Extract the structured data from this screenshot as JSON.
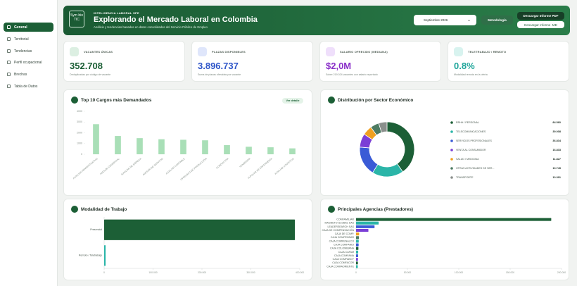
{
  "sidebar": {
    "items": [
      "General",
      "Territorial",
      "Tendencias",
      "Perfil ocupacional",
      "Brechas",
      "Tabla de Datos"
    ]
  },
  "header": {
    "logo": "Sym bio TIC",
    "eyebrow": "INTELIGENCIA LABORAL SPE",
    "title": "Explorando el Mercado Laboral en Colombia",
    "subtitle": "Análisis y tendencias basados en datos consolidados del Servicio Público de Empleo",
    "period": "Septiembre 2026",
    "methodology": "Metodología",
    "download_pdf": "Descargar Informe PDF",
    "download_md": "Descargar Informe .MD"
  },
  "kpis": [
    {
      "label": "VACANTES ÚNICAS",
      "value": "352.708",
      "note": "Deduplicadas por código de vacante"
    },
    {
      "label": "PLAZAS DISPONIBLES",
      "value": "3.896.737",
      "note": "Suma de plazas ofrecidas por vacante"
    },
    {
      "label": "SALARIO OFRECIDO (MEDIANA)",
      "value": "$2,0M",
      "note": "Sobre 219.024 vacantes con salario reportado"
    },
    {
      "label": "TELETRABAJO / REMOTO",
      "value": "0.8%",
      "note": "Modalidad remota en la oferta"
    }
  ],
  "detail_button": "Ver detalle",
  "chart_data": [
    {
      "type": "bar",
      "orientation": "vertical",
      "title": "Top 10 Cargos más Demandados",
      "categories": [
        "AUXILIAR ADMINISTRATIVO",
        "ASESOR COMERCIAL",
        "AUXILIAR DE BODEGA",
        "ASESOR DE SERVICIO",
        "AUXILIAR CONTABLE",
        "OPERARIO DE PRODUCCIÓN",
        "CONDUCTOR",
        "VENDEDOR",
        "AUXILIAR DE ENFERMERÍA",
        "AUXILIAR LOGÍSTICO"
      ],
      "values": [
        2800,
        1700,
        1500,
        1400,
        1350,
        1300,
        850,
        700,
        650,
        550
      ],
      "color": "#a9dfb7",
      "ylim": [
        0,
        4000
      ],
      "yticks": [
        0,
        1000,
        2000,
        3000,
        4000
      ],
      "grid": false
    },
    {
      "type": "donut",
      "title": "Distribución por Sector Económico",
      "categories": [
        "RRHH / PERSONAL",
        "TELECOMUNICACIONES",
        "SERVICIOS PROFESIONALES",
        "VENTA AL CONSUMIDOR",
        "SALUD / MEDICINA",
        "OTRAS ACTIVIDADES DE SER...",
        "TRANSPORTE"
      ],
      "values": [
        84560,
        39008,
        36834,
        16833,
        11827,
        10745,
        10391
      ],
      "value_labels": [
        "84.560",
        "39.008",
        "36.834",
        "16.833",
        "11.827",
        "10.745",
        "10.391"
      ],
      "colors": [
        "#1c5f36",
        "#2bb5a8",
        "#3a5bd6",
        "#7b3fd6",
        "#f0a020",
        "#4d7b62",
        "#8a8f8c"
      ]
    },
    {
      "type": "bar",
      "orientation": "horizontal",
      "title": "Modalidad de Trabajo",
      "categories": [
        "Presencial",
        "Remoto / Teletrabajo"
      ],
      "values": [
        390000,
        3000
      ],
      "colors": [
        "#1c5f36",
        "#2bb5a8"
      ],
      "xlim": [
        0,
        400000
      ],
      "xticks": [
        0,
        {
          "value": 100000,
          "label": "100.000"
        },
        {
          "value": 200000,
          "label": "200.000"
        },
        {
          "value": 300000,
          "label": "300.000"
        },
        {
          "value": 400000,
          "label": "400.000"
        }
      ],
      "grid": false
    },
    {
      "type": "bar",
      "orientation": "horizontal",
      "title": "Principales Agencias (Prestadores)",
      "categories": [
        "COMFAMILIAR",
        "MAGNETO GLOBAL SAS",
        "LEADERSEARCH SAS",
        "CAJA DE COMPENSACIÓN",
        "CAJA DE COMP.",
        "CAJA COMPENSAR",
        "CAJA COMFENALCO",
        "CAJA COMFANDI",
        "CAJA COLOMBIANA",
        "CAJA CAFAM",
        "CAJA COMFAMA",
        "CAJA COMFABOY",
        "CAJA COMFACOR",
        "CAJA COMFAORIENTE"
      ],
      "values": [
        190000,
        22000,
        18000,
        12000,
        3000,
        2800,
        2600,
        2500,
        2300,
        2100,
        2000,
        1900,
        1800,
        1700
      ],
      "colors": [
        "#1c5f36",
        "#2bb5a8",
        "#3a5bd6",
        "#7b3fd6",
        "#f0a020",
        "#4d7b62",
        "#2bb5a8",
        "#3a5bd6",
        "#1c5f36",
        "#2bb5a8",
        "#3a5bd6",
        "#7b3fd6",
        "#1c5f36",
        "#2bb5a8"
      ],
      "xlim": [
        0,
        200000
      ],
      "xticks": [
        0,
        {
          "value": 50000,
          "label": "50.000"
        },
        {
          "value": 100000,
          "label": "100.000"
        },
        {
          "value": 150000,
          "label": "150.000"
        },
        {
          "value": 200000,
          "label": "200.000"
        }
      ],
      "grid": false
    }
  ]
}
